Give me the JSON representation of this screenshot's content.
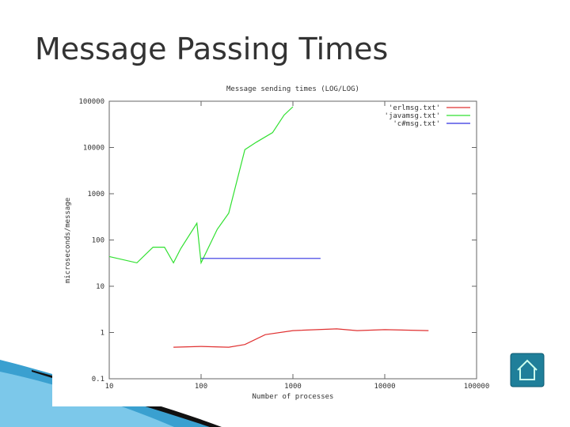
{
  "slide_title": "Message Passing Times",
  "chart_data": {
    "type": "line",
    "title": "Message sending times (LOG/LOG)",
    "x_label": "Number of processes",
    "y_label": "microseconds/message",
    "log_x": true,
    "log_y": true,
    "xlim": [
      10,
      100000
    ],
    "ylim": [
      0.1,
      100000
    ],
    "xticks": [
      10,
      100,
      1000,
      10000,
      100000
    ],
    "yticks": [
      0.1,
      1,
      10,
      100,
      1000,
      10000,
      100000
    ],
    "legend": "top-right",
    "series": [
      {
        "name": "'erlmsg.txt'",
        "color": "#e03030",
        "x": [
          50,
          100,
          200,
          300,
          500,
          1000,
          3000,
          5000,
          10000,
          30000
        ],
        "values": [
          0.48,
          0.5,
          0.48,
          0.55,
          0.9,
          1.1,
          1.2,
          1.1,
          1.15,
          1.1
        ]
      },
      {
        "name": "'javamsg.txt'",
        "color": "#30e030",
        "x": [
          10,
          20,
          30,
          40,
          50,
          60,
          90,
          100,
          150,
          200,
          300,
          400,
          600,
          800,
          1000
        ],
        "values": [
          44,
          32,
          70,
          70,
          32,
          65,
          230,
          32,
          170,
          380,
          9000,
          13000,
          21000,
          50000,
          76000
        ]
      },
      {
        "name": "'c#msg.txt'",
        "color": "#3030e0",
        "x": [
          100,
          2000
        ],
        "values": [
          40,
          40
        ]
      }
    ]
  }
}
